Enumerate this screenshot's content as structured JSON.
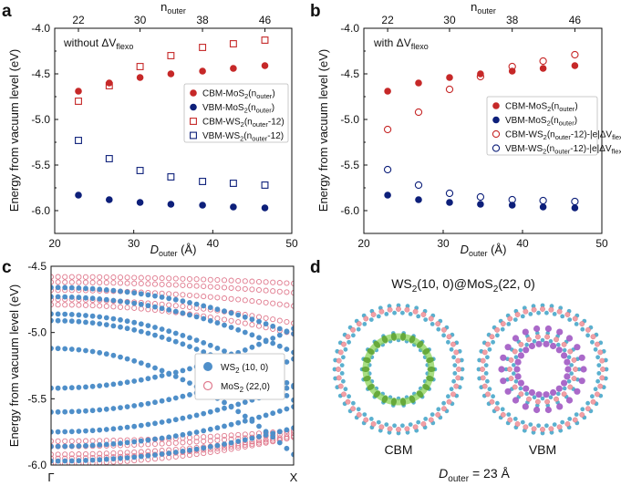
{
  "panel_labels": {
    "a": "a",
    "b": "b",
    "c": "c",
    "d": "d"
  },
  "colors": {
    "red": "#c62828",
    "navy": "#0d1f7a",
    "blue": "#4f8fc9",
    "pink": "#e07a8e",
    "green": "#6fb33d",
    "purple": "#8e44ad"
  },
  "chart_data": [
    {
      "id": "a",
      "type": "scatter",
      "annotation": "without ΔV",
      "annotation_sub": "flexo",
      "xlabel": "D",
      "xlabel_sub": "outer",
      "xlabel_unit": " (Å)",
      "ylabel": "Energy from vacuum level (eV)",
      "top_label": "n",
      "top_label_sub": "outer",
      "xlim": [
        20,
        50
      ],
      "ylim": [
        -6.25,
        -4.0
      ],
      "xticks": [
        "20",
        "30",
        "40",
        "50"
      ],
      "yticks": [
        "-4.0",
        "-4.5",
        "-5.0",
        "-5.5",
        "-6.0"
      ],
      "top_ticks": [
        "22",
        "30",
        "38",
        "46"
      ],
      "x": [
        23.0,
        26.9,
        30.8,
        34.7,
        38.7,
        42.6,
        46.6
      ],
      "series": [
        {
          "name": "CBM-MoS",
          "legend_parts": [
            [
              "CBM-MoS",
              ""
            ],
            [
              "2",
              "sub"
            ],
            [
              "(n",
              ""
            ],
            [
              "outer",
              "sub"
            ],
            [
              ")",
              ""
            ]
          ],
          "marker": "filled-circle",
          "color": "#c62828",
          "values": [
            -4.69,
            -4.6,
            -4.54,
            -4.5,
            -4.47,
            -4.44,
            -4.41
          ]
        },
        {
          "name": "VBM-MoS",
          "legend_parts": [
            [
              "VBM-MoS",
              ""
            ],
            [
              "2",
              "sub"
            ],
            [
              "(n",
              ""
            ],
            [
              "outer",
              "sub"
            ],
            [
              ")",
              ""
            ]
          ],
          "marker": "filled-circle",
          "color": "#0d1f7a",
          "values": [
            -5.83,
            -5.88,
            -5.91,
            -5.93,
            -5.94,
            -5.96,
            -5.97
          ]
        },
        {
          "name": "CBM-WS",
          "legend_parts": [
            [
              "CBM-WS",
              ""
            ],
            [
              "2",
              "sub"
            ],
            [
              "(n",
              ""
            ],
            [
              "outer",
              "sub"
            ],
            [
              "-12)",
              ""
            ]
          ],
          "marker": "open-square",
          "color": "#c62828",
          "values": [
            -4.8,
            -4.63,
            -4.42,
            -4.3,
            -4.21,
            -4.17,
            -4.13
          ]
        },
        {
          "name": "VBM-WS",
          "legend_parts": [
            [
              "VBM-WS",
              ""
            ],
            [
              "2",
              "sub"
            ],
            [
              "(n",
              ""
            ],
            [
              "outer",
              "sub"
            ],
            [
              "-12)",
              ""
            ]
          ],
          "marker": "open-square",
          "color": "#0d1f7a",
          "values": [
            -5.23,
            -5.43,
            -5.56,
            -5.63,
            -5.68,
            -5.7,
            -5.72
          ]
        }
      ]
    },
    {
      "id": "b",
      "type": "scatter",
      "annotation": "with ΔV",
      "annotation_sub": "flexo",
      "xlabel": "D",
      "xlabel_sub": "outer",
      "xlabel_unit": " (Å)",
      "ylabel": "Energy from vacuum level (eV)",
      "top_label": "n",
      "top_label_sub": "outer",
      "xlim": [
        20,
        50
      ],
      "ylim": [
        -6.25,
        -4.0
      ],
      "xticks": [
        "20",
        "30",
        "40",
        "50"
      ],
      "yticks": [
        "-4.0",
        "-4.5",
        "-5.0",
        "-5.5",
        "-6.0"
      ],
      "top_ticks": [
        "22",
        "30",
        "38",
        "46"
      ],
      "x": [
        23.0,
        26.9,
        30.8,
        34.7,
        38.7,
        42.6,
        46.6
      ],
      "series": [
        {
          "name": "CBM-MoS",
          "legend_parts": [
            [
              "CBM-MoS",
              ""
            ],
            [
              "2",
              "sub"
            ],
            [
              "(n",
              ""
            ],
            [
              "outer",
              "sub"
            ],
            [
              ")",
              ""
            ]
          ],
          "marker": "filled-circle",
          "color": "#c62828",
          "values": [
            -4.69,
            -4.6,
            -4.54,
            -4.5,
            -4.47,
            -4.44,
            -4.41
          ]
        },
        {
          "name": "VBM-MoS",
          "legend_parts": [
            [
              "VBM-MoS",
              ""
            ],
            [
              "2",
              "sub"
            ],
            [
              "(n",
              ""
            ],
            [
              "outer",
              "sub"
            ],
            [
              ")",
              ""
            ]
          ],
          "marker": "filled-circle",
          "color": "#0d1f7a",
          "values": [
            -5.83,
            -5.88,
            -5.91,
            -5.93,
            -5.94,
            -5.96,
            -5.97
          ]
        },
        {
          "name": "CBM-WS",
          "legend_parts": [
            [
              "CBM-WS",
              ""
            ],
            [
              "2",
              "sub"
            ],
            [
              "(n",
              ""
            ],
            [
              "outer",
              "sub"
            ],
            [
              "-12)-|e|ΔV",
              ""
            ],
            [
              "flexo",
              "sub"
            ]
          ],
          "marker": "open-circle",
          "color": "#c62828",
          "values": [
            -5.11,
            -4.92,
            -4.67,
            -4.53,
            -4.42,
            -4.36,
            -4.29
          ]
        },
        {
          "name": "VBM-WS",
          "legend_parts": [
            [
              "VBM-WS",
              ""
            ],
            [
              "2",
              "sub"
            ],
            [
              "(n",
              ""
            ],
            [
              "outer",
              "sub"
            ],
            [
              "-12)-|e|ΔV",
              ""
            ],
            [
              "flexo",
              "sub"
            ]
          ],
          "marker": "open-circle",
          "color": "#0d1f7a",
          "values": [
            -5.55,
            -5.72,
            -5.81,
            -5.85,
            -5.88,
            -5.89,
            -5.9
          ]
        }
      ]
    },
    {
      "id": "c",
      "type": "scatter",
      "ylabel": "Energy from vacuum level (eV)",
      "xticks": [
        "Γ",
        "X"
      ],
      "ylim": [
        -6.0,
        -4.5
      ],
      "yticks": [
        "-4.5",
        "-5.0",
        "-5.5",
        "-6.0"
      ],
      "legend": [
        {
          "label": "WS",
          "sub": "2",
          "rest": " (10, 0)",
          "marker": "filled-circle",
          "color": "#4f8fc9"
        },
        {
          "label": "MoS",
          "sub": "2",
          "rest": " (22,0)",
          "marker": "open-circle",
          "color": "#e07a8e"
        }
      ],
      "bands_ws2": [
        {
          "e0": -4.66,
          "curv": 0.35
        },
        {
          "e0": -4.73,
          "curv": 0.42
        },
        {
          "e0": -4.86,
          "curv": 0.55
        },
        {
          "e0": -4.91,
          "curv": 0.6
        },
        {
          "e0": -5.12,
          "curv": 0.8
        },
        {
          "e0": -5.42,
          "curv": -0.45
        },
        {
          "e0": -5.6,
          "curv": -0.4
        },
        {
          "e0": -5.75,
          "curv": -0.35
        },
        {
          "e0": -5.86,
          "curv": -0.3
        },
        {
          "e0": -5.97,
          "curv": -0.25
        }
      ],
      "bands_mos2": [
        {
          "e0": -4.58,
          "curv": 0.05
        },
        {
          "e0": -4.62,
          "curv": 0.08
        },
        {
          "e0": -4.68,
          "curv": 0.12
        },
        {
          "e0": -4.75,
          "curv": 0.18
        },
        {
          "e0": -4.79,
          "curv": 0.22
        },
        {
          "e0": -5.82,
          "curv": -0.08
        },
        {
          "e0": -5.86,
          "curv": -0.1
        },
        {
          "e0": -5.92,
          "curv": -0.14
        },
        {
          "e0": -5.95,
          "curv": -0.16
        },
        {
          "e0": -5.99,
          "curv": -0.2
        }
      ]
    }
  ],
  "panel_d": {
    "title_parts": [
      [
        "WS",
        ""
      ],
      [
        "2",
        "sub"
      ],
      [
        "(10, 0)@MoS",
        ""
      ],
      [
        "2",
        "sub"
      ],
      [
        "(22, 0)",
        ""
      ]
    ],
    "left_caption": "CBM",
    "right_caption": "VBM",
    "footer": "D",
    "footer_sub": "outer",
    "footer_value": " =  23 Å"
  }
}
